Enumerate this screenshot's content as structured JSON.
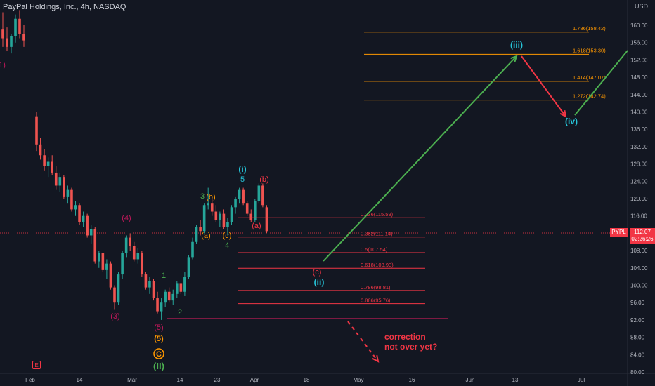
{
  "header": {
    "symbol_title": "PayPal Holdings, Inc., 4h, NASDAQ",
    "currency": "USD"
  },
  "price_marker": {
    "ticker": "PYPL",
    "price": "112.07",
    "countdown": "02:26:26"
  },
  "earnings_icon_label": "E",
  "colors": {
    "background": "#131722",
    "up": "#26a69a",
    "down": "#ef5350",
    "fib_orange": "#ff9800",
    "fib_red": "#f23645",
    "impulse_green": "#4caf50",
    "wave_cyan": "#26c6da",
    "wave_pink": "#e91e63",
    "wave_magenta": "#c2185b"
  },
  "chart_data": {
    "type": "candlestick",
    "title": "PayPal Holdings, Inc., 4h, NASDAQ",
    "y_axis": {
      "ylim": [
        80,
        164
      ],
      "ticks": [
        "160.00",
        "156.00",
        "152.00",
        "148.00",
        "144.00",
        "140.00",
        "136.00",
        "132.00",
        "128.00",
        "124.00",
        "120.00",
        "116.00",
        "112.00",
        "108.00",
        "104.00",
        "100.00",
        "96.00",
        "92.00",
        "88.00",
        "84.00",
        "80.00"
      ]
    },
    "x_axis": {
      "ticks": [
        "Feb",
        "14",
        "Mar",
        "14",
        "23",
        "Apr",
        "18",
        "May",
        "16",
        "Jun",
        "13",
        "Jul"
      ]
    },
    "candles_ohlc": [
      [
        159.0,
        163.0,
        155.0,
        157.0
      ],
      [
        157.0,
        159.5,
        154.0,
        155.0
      ],
      [
        155.0,
        158.0,
        153.5,
        157.5
      ],
      [
        157.5,
        162.5,
        156.0,
        161.5
      ],
      [
        161.5,
        163.5,
        157.0,
        158.0
      ],
      [
        158.0,
        160.0,
        155.0,
        156.5
      ],
      [
        139.0,
        140.0,
        131.0,
        132.5
      ],
      [
        132.5,
        134.0,
        129.0,
        130.0
      ],
      [
        130.0,
        131.5,
        126.5,
        127.5
      ],
      [
        127.5,
        129.5,
        125.0,
        128.5
      ],
      [
        128.5,
        130.0,
        125.5,
        126.0
      ],
      [
        126.0,
        127.5,
        122.0,
        123.0
      ],
      [
        123.0,
        126.0,
        121.5,
        125.0
      ],
      [
        125.0,
        125.5,
        120.0,
        120.5
      ],
      [
        120.5,
        123.0,
        119.0,
        122.0
      ],
      [
        122.0,
        122.5,
        117.0,
        117.5
      ],
      [
        117.5,
        119.5,
        116.0,
        118.5
      ],
      [
        118.5,
        119.0,
        114.0,
        114.5
      ],
      [
        114.5,
        117.0,
        113.5,
        116.0
      ],
      [
        116.0,
        116.5,
        111.0,
        111.5
      ],
      [
        111.5,
        114.0,
        109.5,
        113.0
      ],
      [
        113.0,
        113.5,
        105.0,
        105.5
      ],
      [
        105.5,
        108.0,
        104.0,
        107.5
      ],
      [
        107.5,
        107.5,
        103.0,
        103.5
      ],
      [
        103.5,
        106.0,
        101.5,
        105.0
      ],
      [
        105.0,
        105.5,
        99.0,
        99.5
      ],
      [
        99.5,
        100.0,
        94.5,
        96.0
      ],
      [
        96.0,
        103.0,
        95.5,
        102.5
      ],
      [
        102.5,
        108.0,
        101.5,
        107.5
      ],
      [
        107.5,
        111.5,
        106.5,
        111.0
      ],
      [
        111.0,
        112.0,
        108.0,
        109.0
      ],
      [
        109.0,
        110.0,
        105.5,
        106.0
      ],
      [
        106.0,
        108.5,
        105.0,
        107.5
      ],
      [
        107.5,
        108.0,
        102.0,
        102.5
      ],
      [
        102.5,
        103.0,
        99.0,
        99.5
      ],
      [
        99.5,
        102.0,
        98.0,
        101.0
      ],
      [
        101.0,
        101.5,
        96.5,
        97.0
      ],
      [
        97.0,
        98.5,
        93.5,
        94.0
      ],
      [
        94.0,
        97.0,
        92.0,
        96.0
      ],
      [
        96.0,
        99.0,
        95.0,
        98.5
      ],
      [
        98.5,
        99.5,
        96.0,
        96.5
      ],
      [
        96.5,
        99.0,
        95.5,
        98.0
      ],
      [
        98.0,
        101.0,
        97.0,
        100.5
      ],
      [
        100.5,
        100.5,
        98.0,
        98.5
      ],
      [
        98.5,
        103.0,
        97.5,
        102.0
      ],
      [
        102.0,
        107.0,
        101.5,
        106.5
      ],
      [
        106.5,
        111.0,
        106.0,
        110.0
      ],
      [
        110.0,
        114.0,
        109.5,
        113.5
      ],
      [
        113.5,
        115.0,
        111.5,
        112.5
      ],
      [
        112.5,
        119.0,
        112.0,
        118.5
      ],
      [
        118.5,
        122.5,
        117.5,
        119.0
      ],
      [
        119.0,
        120.0,
        116.0,
        117.0
      ],
      [
        117.0,
        118.5,
        114.5,
        115.0
      ],
      [
        115.0,
        117.0,
        113.5,
        116.5
      ],
      [
        116.5,
        117.5,
        113.0,
        113.5
      ],
      [
        113.5,
        115.5,
        111.5,
        114.5
      ],
      [
        114.5,
        118.5,
        114.0,
        118.0
      ],
      [
        118.0,
        120.5,
        116.5,
        120.0
      ],
      [
        120.0,
        122.5,
        119.0,
        122.0
      ],
      [
        122.0,
        122.5,
        118.5,
        119.0
      ],
      [
        119.0,
        119.5,
        116.0,
        116.5
      ],
      [
        116.5,
        117.5,
        114.5,
        115.0
      ],
      [
        115.0,
        120.0,
        114.5,
        119.5
      ],
      [
        119.5,
        123.5,
        119.0,
        123.0
      ],
      [
        123.0,
        123.5,
        118.0,
        118.5
      ],
      [
        118.0,
        118.5,
        112.0,
        112.5
      ]
    ],
    "fibonacci_extension": [
      {
        "label": "1.786(158.42)",
        "value": 158.42
      },
      {
        "label": "1.618(153.30)",
        "value": 153.3
      },
      {
        "label": "1.414(147.07)",
        "value": 147.07
      },
      {
        "label": "1.272(142.74)",
        "value": 142.74
      }
    ],
    "fibonacci_retracement": [
      {
        "label": "0.236(115.59)",
        "value": 115.59
      },
      {
        "label": "0.382(111.14)",
        "value": 111.14
      },
      {
        "label": "0.5(107.54)",
        "value": 107.54
      },
      {
        "label": "0.618(103.93)",
        "value": 103.93
      },
      {
        "label": "0.786(98.81)",
        "value": 98.81
      },
      {
        "label": "0.886(95.76)",
        "value": 95.76
      }
    ],
    "support_level": 92.3,
    "wave_labels": [
      {
        "text": "(3)"
      },
      {
        "text": "(4)"
      },
      {
        "text": "(5)"
      },
      {
        "text": "(5)"
      },
      {
        "text": "C"
      },
      {
        "text": "(II)"
      },
      {
        "text": "1"
      },
      {
        "text": "2"
      },
      {
        "text": "3"
      },
      {
        "text": "(b)"
      },
      {
        "text": "(a)"
      },
      {
        "text": "(c)"
      },
      {
        "text": "4"
      },
      {
        "text": "5"
      },
      {
        "text": "(i)"
      },
      {
        "text": "(b)"
      },
      {
        "text": "(a)"
      },
      {
        "text": "(c)"
      },
      {
        "text": "(ii)"
      },
      {
        "text": "(iii)"
      },
      {
        "text": "(iv)"
      },
      {
        "text": "1)"
      }
    ],
    "annotation": [
      "correction",
      "not over yet?"
    ]
  }
}
